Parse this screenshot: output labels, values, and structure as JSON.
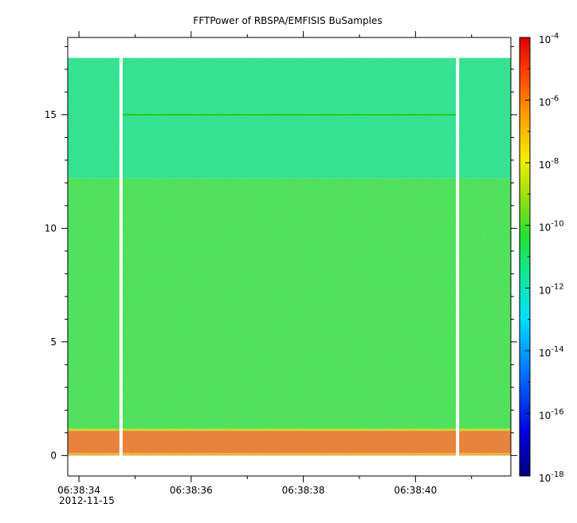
{
  "chart_data": {
    "type": "heatmap",
    "title": "FFTPower of RBSPA/EMFISIS  BuSamples",
    "xlabel": "",
    "ylabel": "",
    "x_range": [
      "06:38:33.8",
      "06:38:41.7"
    ],
    "ylim": [
      -0.9,
      18.4
    ],
    "x_ticks": [
      "06:38:34",
      "06:38:36",
      "06:38:38",
      "06:38:40"
    ],
    "x_tick_seconds": [
      34,
      36,
      38,
      40
    ],
    "x_sub_label": "2012-11-15",
    "y_ticks": [
      0,
      5,
      10,
      15
    ],
    "colorbar": {
      "scale": "log",
      "range": [
        1e-18,
        0.0001
      ],
      "tick_labels": [
        {
          "base": "10",
          "exp": "-4",
          "value": -4
        },
        {
          "base": "10",
          "exp": "-6",
          "value": -6
        },
        {
          "base": "10",
          "exp": "-8",
          "value": -8
        },
        {
          "base": "10",
          "exp": "-10",
          "value": -10
        },
        {
          "base": "10",
          "exp": "-12",
          "value": -12
        },
        {
          "base": "10",
          "exp": "-14",
          "value": -14
        },
        {
          "base": "10",
          "exp": "-16",
          "value": -16
        },
        {
          "base": "10",
          "exp": "-18",
          "value": -18
        }
      ]
    },
    "frequency_bands": [
      {
        "y_from": 0.0,
        "y_to": 1.15,
        "log10_power": -7.5,
        "color": "#f07828"
      },
      {
        "y_from": 1.15,
        "y_to": 12.2,
        "log10_power": -10.6,
        "color": "#3ee84c"
      },
      {
        "y_from": 12.2,
        "y_to": 17.5,
        "log10_power": -12.2,
        "color": "#1ee98a"
      }
    ],
    "line_feature": {
      "y": 15.0,
      "color": "#22cc22"
    },
    "data_gaps_seconds": [
      34.75,
      40.75
    ]
  }
}
